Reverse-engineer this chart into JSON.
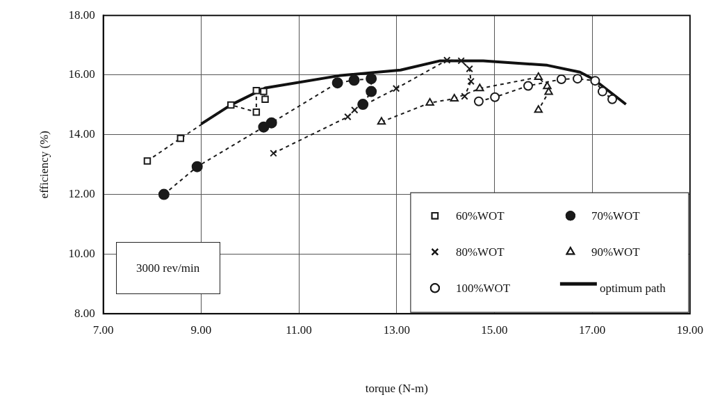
{
  "chart_data": {
    "type": "line",
    "xlabel": "torque (N-m)",
    "ylabel": "efficiency (%)",
    "xlim": [
      7,
      19
    ],
    "xticks": [
      {
        "value": 7,
        "label": "7.00"
      },
      {
        "value": 9,
        "label": "9.00"
      },
      {
        "value": 11,
        "label": "11.00"
      },
      {
        "value": 13,
        "label": "13.00"
      },
      {
        "value": 15,
        "label": "15.00"
      },
      {
        "value": 17,
        "label": "17.00"
      },
      {
        "value": 19,
        "label": "19.00"
      }
    ],
    "ylim": [
      8,
      18
    ],
    "yticks": [
      {
        "value": 8,
        "label": "8.00"
      },
      {
        "value": 10,
        "label": "10.00"
      },
      {
        "value": 12,
        "label": "12.00"
      },
      {
        "value": 14,
        "label": "14.00"
      },
      {
        "value": 16,
        "label": "16.00"
      },
      {
        "value": 18,
        "label": "18.00"
      }
    ],
    "grid": true,
    "legend": "bottom right",
    "annotations": [
      "3000 rev/min"
    ],
    "series": [
      {
        "name": "60%WOT",
        "color": "#1a1a1a",
        "marker": "square",
        "line_style": "dashed",
        "x": [
          7.9,
          8.58,
          9.61,
          10.13,
          10.13,
          10.28,
          10.31
        ],
        "values": [
          13.12,
          13.88,
          15.0,
          14.76,
          15.48,
          15.45,
          15.19
        ]
      },
      {
        "name": "70%WOT",
        "color": "#1a1a1a",
        "marker": "circle",
        "line_style": "dashed",
        "x": [
          8.24,
          8.92,
          10.28,
          10.44,
          11.79,
          12.13,
          12.48,
          12.48,
          12.31
        ],
        "values": [
          12.0,
          12.93,
          14.26,
          14.4,
          15.74,
          15.83,
          15.88,
          15.45,
          15.02
        ]
      },
      {
        "name": "80%WOT",
        "color": "#1a1a1a",
        "marker": "cross",
        "line_style": "dashed",
        "x": [
          10.48,
          12.0,
          12.14,
          12.99,
          14.03,
          14.32,
          14.49,
          14.52,
          14.39
        ],
        "values": [
          13.38,
          14.6,
          14.83,
          15.55,
          16.5,
          16.48,
          16.21,
          15.79,
          15.29
        ]
      },
      {
        "name": "90%WOT",
        "color": "#1a1a1a",
        "marker": "triangle",
        "line_style": "dashed",
        "x": [
          12.69,
          13.68,
          14.18,
          14.7,
          15.9,
          16.08,
          16.11,
          15.9
        ],
        "values": [
          14.43,
          15.07,
          15.21,
          15.55,
          15.93,
          15.62,
          15.43,
          14.83
        ]
      },
      {
        "name": "100%WOT",
        "color": "#1a1a1a",
        "marker": "circle",
        "line_style": "dashed",
        "x": [
          14.68,
          15.01,
          15.69,
          16.37,
          16.7,
          17.06,
          17.21,
          17.41
        ],
        "values": [
          15.12,
          15.26,
          15.64,
          15.86,
          15.88,
          15.81,
          15.45,
          15.19
        ]
      },
      {
        "name": "optimum path",
        "color": "#111111",
        "marker": "none",
        "line_style": "solid",
        "x": [
          9.0,
          9.61,
          10.31,
          11.82,
          13.08,
          13.89,
          14.77,
          16.08,
          16.75,
          17.03,
          17.69
        ],
        "values": [
          14.36,
          15.0,
          15.57,
          15.98,
          16.17,
          16.48,
          16.48,
          16.33,
          16.1,
          15.86,
          15.02
        ]
      }
    ]
  }
}
